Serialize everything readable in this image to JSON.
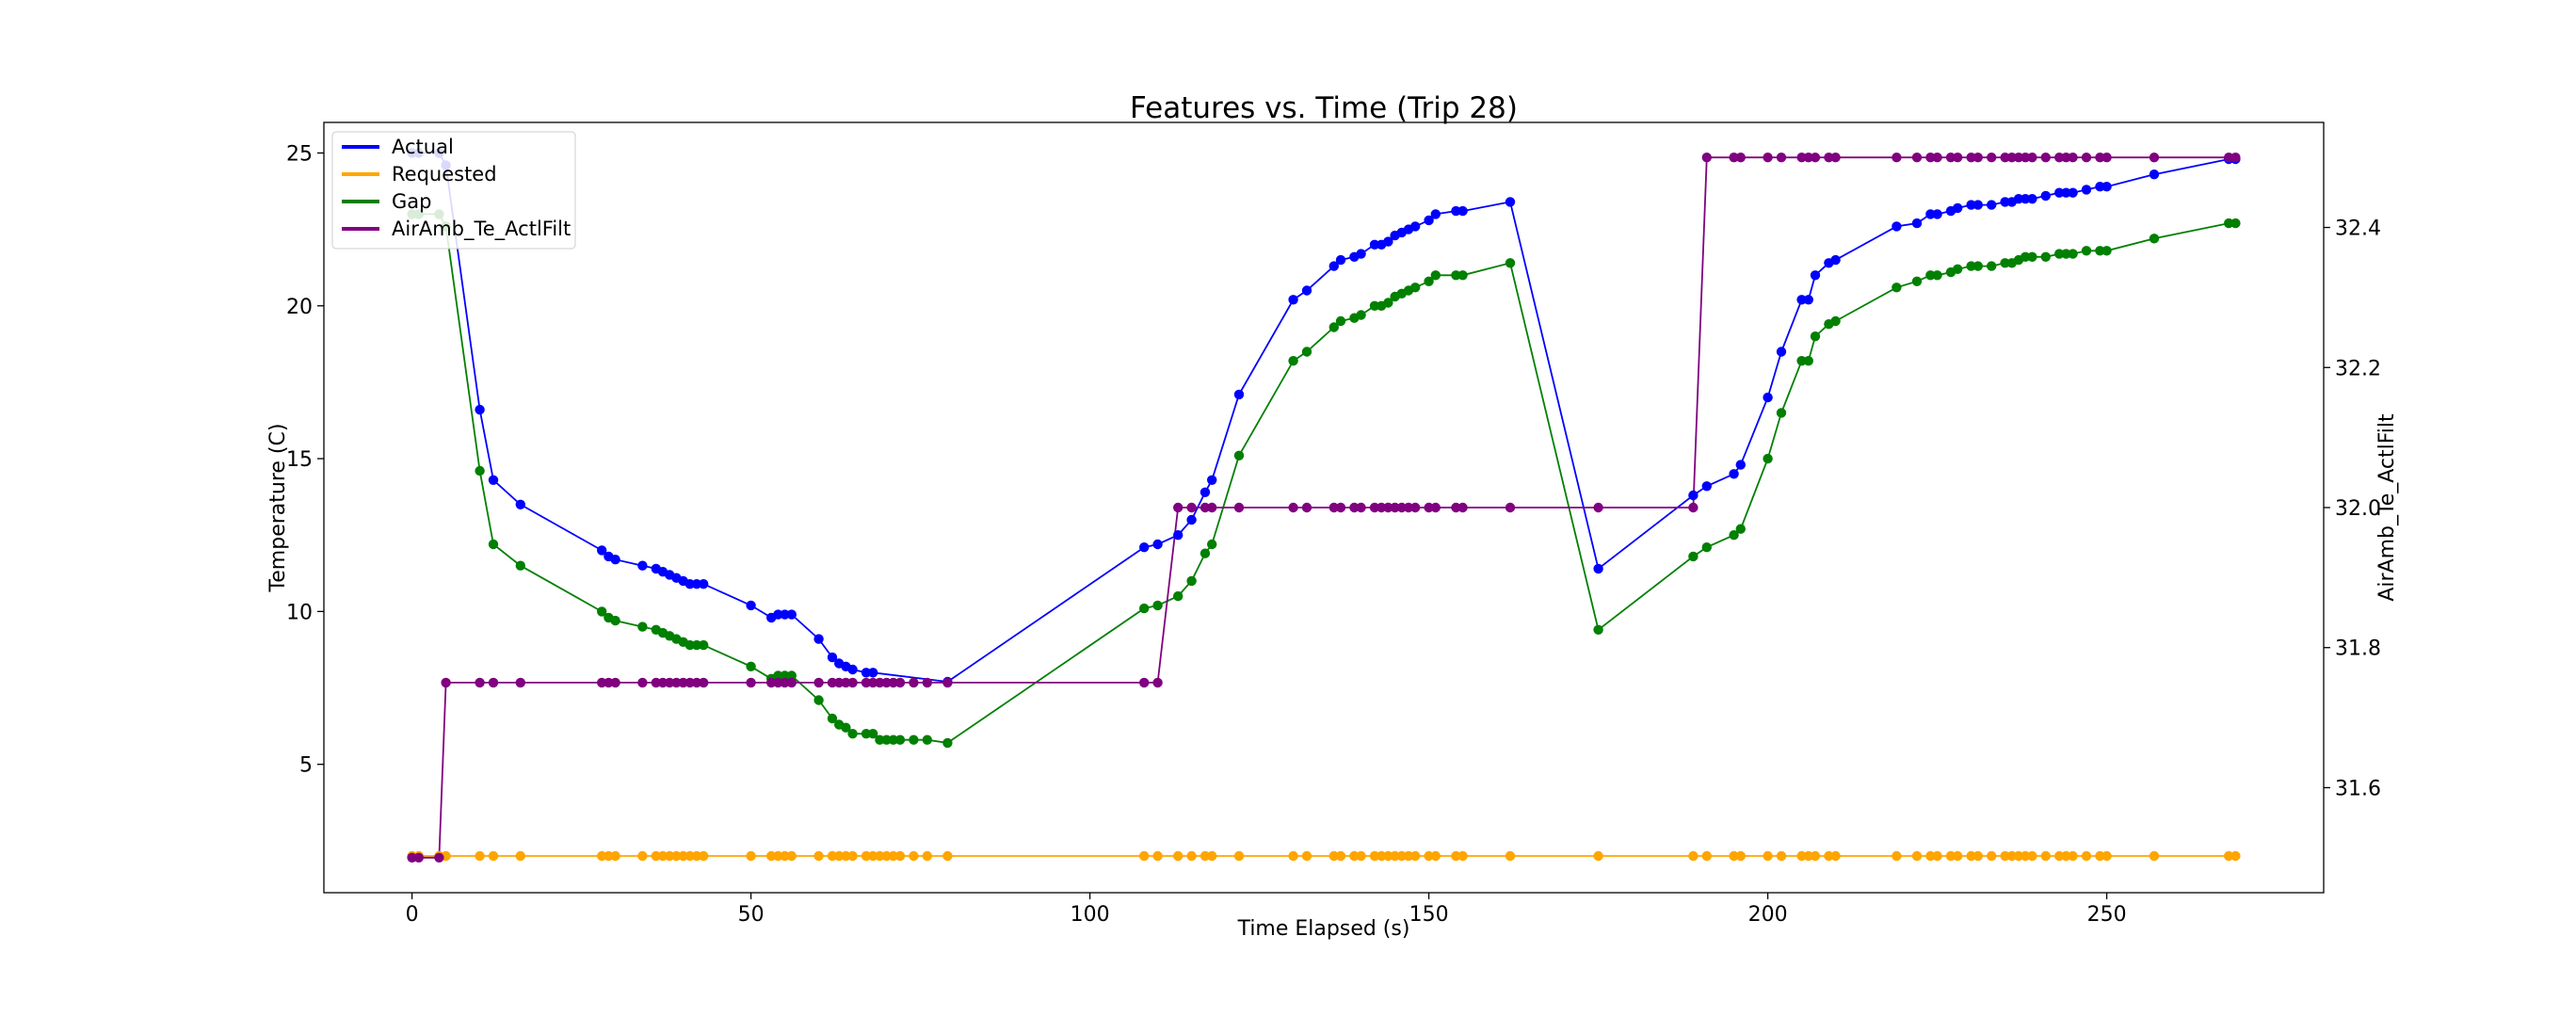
{
  "chart_data": {
    "type": "line",
    "title": "Features vs. Time (Trip 28)",
    "xlabel": "Time Elapsed (s)",
    "ylabel": "Temperature (C)",
    "y2label": "AirAmb_Te_ActlFilt",
    "xlim": [
      -13,
      282
    ],
    "ylim": [
      0.8,
      26.0
    ],
    "y2lim": [
      31.45,
      32.55
    ],
    "xticks": [
      0,
      50,
      100,
      150,
      200,
      250
    ],
    "yticks": [
      5,
      10,
      15,
      20,
      25
    ],
    "y2ticks": [
      31.6,
      31.8,
      32.0,
      32.2,
      32.4
    ],
    "legend_position": "upper-left",
    "series": [
      {
        "name": "Actual",
        "axis": "left",
        "color": "#0000ff",
        "x": [
          0,
          1,
          4,
          5,
          10,
          12,
          16,
          28,
          29,
          30,
          34,
          36,
          37,
          38,
          39,
          40,
          41,
          42,
          43,
          50,
          53,
          54,
          55,
          56,
          60,
          62,
          63,
          64,
          65,
          67,
          68,
          79,
          108,
          110,
          113,
          115,
          117,
          118,
          122,
          130,
          132,
          136,
          137,
          139,
          140,
          142,
          143,
          144,
          145,
          146,
          147,
          148,
          150,
          151,
          154,
          155,
          162,
          175,
          189,
          191,
          195,
          196,
          200,
          202,
          205,
          206,
          207,
          209,
          210,
          219,
          222,
          224,
          225,
          227,
          228,
          230,
          231,
          233,
          235,
          236,
          237,
          238,
          239,
          241,
          243,
          244,
          245,
          247,
          249,
          250,
          257,
          268,
          269
        ],
        "values": [
          25.0,
          25.0,
          25.0,
          24.6,
          16.6,
          14.3,
          13.5,
          12.0,
          11.8,
          11.7,
          11.5,
          11.4,
          11.3,
          11.2,
          11.1,
          11.0,
          10.9,
          10.9,
          10.9,
          10.2,
          9.8,
          9.9,
          9.9,
          9.9,
          9.1,
          8.5,
          8.3,
          8.2,
          8.1,
          8.0,
          8.0,
          7.7,
          12.1,
          12.2,
          12.5,
          13.0,
          13.9,
          14.3,
          17.1,
          20.2,
          20.5,
          21.3,
          21.5,
          21.6,
          21.7,
          22.0,
          22.0,
          22.1,
          22.3,
          22.4,
          22.5,
          22.6,
          22.8,
          23.0,
          23.1,
          23.1,
          23.4,
          11.4,
          13.8,
          14.1,
          14.5,
          14.8,
          17.0,
          18.5,
          20.2,
          20.2,
          21.0,
          21.4,
          21.5,
          22.6,
          22.7,
          23.0,
          23.0,
          23.1,
          23.2,
          23.3,
          23.3,
          23.3,
          23.4,
          23.4,
          23.5,
          23.5,
          23.5,
          23.6,
          23.7,
          23.7,
          23.7,
          23.8,
          23.9,
          23.9,
          24.3,
          24.8,
          24.8
        ]
      },
      {
        "name": "Requested",
        "axis": "left",
        "color": "#ffa500",
        "x": [
          0,
          1,
          4,
          5,
          10,
          12,
          16,
          28,
          29,
          30,
          34,
          36,
          37,
          38,
          39,
          40,
          41,
          42,
          43,
          50,
          53,
          54,
          55,
          56,
          60,
          62,
          63,
          64,
          65,
          67,
          68,
          69,
          70,
          71,
          72,
          74,
          76,
          79,
          108,
          110,
          113,
          115,
          117,
          118,
          122,
          130,
          132,
          136,
          137,
          139,
          140,
          142,
          143,
          144,
          145,
          146,
          147,
          148,
          150,
          151,
          154,
          155,
          162,
          175,
          189,
          191,
          195,
          196,
          200,
          202,
          205,
          206,
          207,
          209,
          210,
          219,
          222,
          224,
          225,
          227,
          228,
          230,
          231,
          233,
          235,
          236,
          237,
          238,
          239,
          241,
          243,
          244,
          245,
          247,
          249,
          250,
          257,
          268,
          269
        ],
        "values": [
          2.0,
          2.0,
          2.0,
          2.0,
          2.0,
          2.0,
          2.0,
          2.0,
          2.0,
          2.0,
          2.0,
          2.0,
          2.0,
          2.0,
          2.0,
          2.0,
          2.0,
          2.0,
          2.0,
          2.0,
          2.0,
          2.0,
          2.0,
          2.0,
          2.0,
          2.0,
          2.0,
          2.0,
          2.0,
          2.0,
          2.0,
          2.0,
          2.0,
          2.0,
          2.0,
          2.0,
          2.0,
          2.0,
          2.0,
          2.0,
          2.0,
          2.0,
          2.0,
          2.0,
          2.0,
          2.0,
          2.0,
          2.0,
          2.0,
          2.0,
          2.0,
          2.0,
          2.0,
          2.0,
          2.0,
          2.0,
          2.0,
          2.0,
          2.0,
          2.0,
          2.0,
          2.0,
          2.0,
          2.0,
          2.0,
          2.0,
          2.0,
          2.0,
          2.0,
          2.0,
          2.0,
          2.0,
          2.0,
          2.0,
          2.0,
          2.0,
          2.0,
          2.0,
          2.0,
          2.0,
          2.0,
          2.0,
          2.0,
          2.0,
          2.0,
          2.0,
          2.0,
          2.0,
          2.0,
          2.0,
          2.0,
          2.0,
          2.0,
          2.0,
          2.0,
          2.0,
          2.0,
          2.0,
          2.0
        ]
      },
      {
        "name": "Gap",
        "axis": "left",
        "color": "#008000",
        "x": [
          0,
          1,
          4,
          5,
          10,
          12,
          16,
          28,
          29,
          30,
          34,
          36,
          37,
          38,
          39,
          40,
          41,
          42,
          43,
          50,
          53,
          54,
          55,
          56,
          60,
          62,
          63,
          64,
          65,
          67,
          68,
          69,
          70,
          71,
          72,
          74,
          76,
          79,
          108,
          110,
          113,
          115,
          117,
          118,
          122,
          130,
          132,
          136,
          137,
          139,
          140,
          142,
          143,
          144,
          145,
          146,
          147,
          148,
          150,
          151,
          154,
          155,
          162,
          175,
          189,
          191,
          195,
          196,
          200,
          202,
          205,
          206,
          207,
          209,
          210,
          219,
          222,
          224,
          225,
          227,
          228,
          230,
          231,
          233,
          235,
          236,
          237,
          238,
          239,
          241,
          243,
          244,
          245,
          247,
          249,
          250,
          257,
          268,
          269
        ],
        "values": [
          23.0,
          23.0,
          23.0,
          22.6,
          14.6,
          12.2,
          11.5,
          10.0,
          9.8,
          9.7,
          9.5,
          9.4,
          9.3,
          9.2,
          9.1,
          9.0,
          8.9,
          8.9,
          8.9,
          8.2,
          7.8,
          7.9,
          7.9,
          7.9,
          7.1,
          6.5,
          6.3,
          6.2,
          6.0,
          6.0,
          6.0,
          5.8,
          5.8,
          5.8,
          5.8,
          5.8,
          5.8,
          5.7,
          10.1,
          10.2,
          10.5,
          11.0,
          11.9,
          12.2,
          15.1,
          18.2,
          18.5,
          19.3,
          19.5,
          19.6,
          19.7,
          20.0,
          20.0,
          20.1,
          20.3,
          20.4,
          20.5,
          20.6,
          20.8,
          21.0,
          21.0,
          21.0,
          21.4,
          9.4,
          11.8,
          12.1,
          12.5,
          12.7,
          15.0,
          16.5,
          18.2,
          18.2,
          19.0,
          19.4,
          19.5,
          20.6,
          20.8,
          21.0,
          21.0,
          21.1,
          21.2,
          21.3,
          21.3,
          21.3,
          21.4,
          21.4,
          21.5,
          21.6,
          21.6,
          21.6,
          21.7,
          21.7,
          21.7,
          21.8,
          21.8,
          21.8,
          22.2,
          22.7,
          22.7
        ]
      },
      {
        "name": "AirAmb_Te_ActlFilt",
        "axis": "right",
        "color": "#800080",
        "x": [
          0,
          1,
          4,
          5,
          10,
          12,
          16,
          28,
          29,
          30,
          34,
          36,
          37,
          38,
          39,
          40,
          41,
          42,
          43,
          50,
          53,
          54,
          55,
          56,
          60,
          62,
          63,
          64,
          65,
          67,
          68,
          69,
          70,
          71,
          72,
          74,
          76,
          79,
          108,
          110,
          113,
          115,
          117,
          118,
          122,
          130,
          132,
          136,
          137,
          139,
          140,
          142,
          143,
          144,
          145,
          146,
          147,
          148,
          150,
          151,
          154,
          155,
          162,
          175,
          189,
          191,
          195,
          196,
          200,
          202,
          205,
          206,
          207,
          209,
          210,
          219,
          222,
          224,
          225,
          227,
          228,
          230,
          231,
          233,
          235,
          236,
          237,
          238,
          239,
          241,
          243,
          244,
          245,
          247,
          249,
          250,
          257,
          268,
          269
        ],
        "values": [
          31.5,
          31.5,
          31.5,
          31.75,
          31.75,
          31.75,
          31.75,
          31.75,
          31.75,
          31.75,
          31.75,
          31.75,
          31.75,
          31.75,
          31.75,
          31.75,
          31.75,
          31.75,
          31.75,
          31.75,
          31.75,
          31.75,
          31.75,
          31.75,
          31.75,
          31.75,
          31.75,
          31.75,
          31.75,
          31.75,
          31.75,
          31.75,
          31.75,
          31.75,
          31.75,
          31.75,
          31.75,
          31.75,
          31.75,
          31.75,
          32.0,
          32.0,
          32.0,
          32.0,
          32.0,
          32.0,
          32.0,
          32.0,
          32.0,
          32.0,
          32.0,
          32.0,
          32.0,
          32.0,
          32.0,
          32.0,
          32.0,
          32.0,
          32.0,
          32.0,
          32.0,
          32.0,
          32.0,
          32.0,
          32.0,
          32.5,
          32.5,
          32.5,
          32.5,
          32.5,
          32.5,
          32.5,
          32.5,
          32.5,
          32.5,
          32.5,
          32.5,
          32.5,
          32.5,
          32.5,
          32.5,
          32.5,
          32.5,
          32.5,
          32.5,
          32.5,
          32.5,
          32.5,
          32.5,
          32.5,
          32.5,
          32.5,
          32.5,
          32.5,
          32.5,
          32.5,
          32.5,
          32.5,
          32.5
        ]
      }
    ]
  }
}
